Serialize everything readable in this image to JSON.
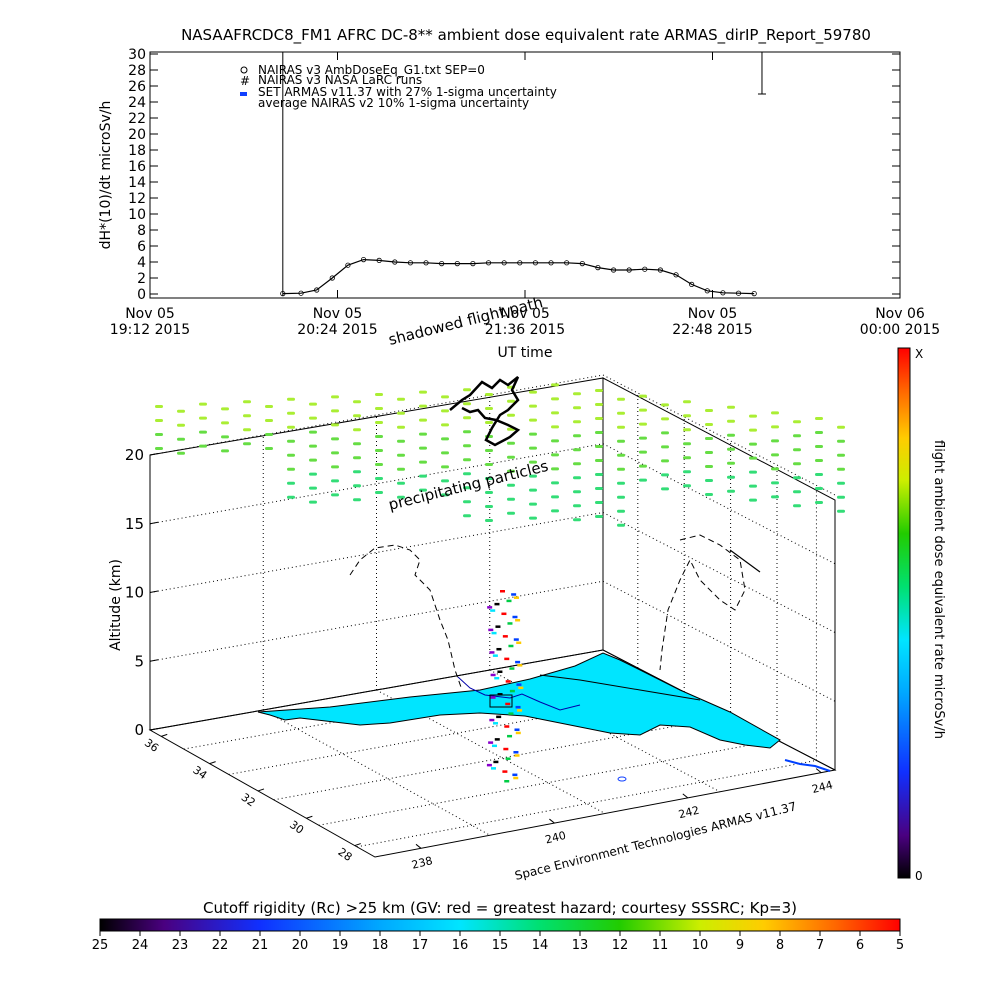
{
  "title": "NASAAFRCDC8_FM1 AFRC DC-8** ambient dose equivalent rate ARMAS_dirIP_Report_59780",
  "colors": {
    "cyan_surface": "#00e5ff",
    "precip_green": "#33dd77",
    "precip_yellow_green": "#aaee33",
    "flight_path": "#000000"
  },
  "chart_data": [
    {
      "type": "line",
      "ylabel": "dH*(10)/dt microSv/h",
      "xlabel": "UT time",
      "ylim": [
        0,
        30
      ],
      "yticks": [
        "0",
        "2",
        "4",
        "6",
        "8",
        "10",
        "12",
        "14",
        "16",
        "18",
        "20",
        "22",
        "24",
        "26",
        "28",
        "30"
      ],
      "xticks": [
        {
          "line1": "Nov 05",
          "line2": "19:12 2015"
        },
        {
          "line1": "Nov 05",
          "line2": "20:24 2015"
        },
        {
          "line1": "Nov 05",
          "line2": "21:36 2015"
        },
        {
          "line1": "Nov 05",
          "line2": "22:48 2015"
        },
        {
          "line1": "Nov 06",
          "line2": "00:00 2015"
        }
      ],
      "x_minutes_since_tick0": [
        51,
        58,
        64,
        70,
        76,
        82,
        88,
        94,
        100,
        106,
        112,
        118,
        124,
        130,
        136,
        142,
        148,
        154,
        160,
        166,
        172,
        178,
        184,
        190,
        196,
        202,
        208,
        214,
        220,
        226,
        232
      ],
      "legend": [
        "NAIRAS v3 AmbDoseEq_G1.txt SEP=0",
        "NAIRAS v3 NASA LaRC runs",
        "SET ARMAS v11.37 with 27% 1-sigma uncertainty",
        "average NAIRAS v2 10% 1-sigma uncertainty"
      ],
      "series": [
        {
          "name": "NAIRAS v3 AmbDoseEq_G1.txt SEP=0",
          "values": [
            0.05,
            0.1,
            0.5,
            2.0,
            3.6,
            4.3,
            4.2,
            4.0,
            3.9,
            3.9,
            3.8,
            3.8,
            3.8,
            3.9,
            3.9,
            3.9,
            3.9,
            3.9,
            3.9,
            3.8,
            3.3,
            3.0,
            3.0,
            3.1,
            3.0,
            2.4,
            1.2,
            0.4,
            0.15,
            0.1,
            0.05
          ]
        }
      ],
      "vertical_markers": [
        {
          "x_minutes": 51,
          "y_top": 31
        },
        {
          "x_minutes": 235,
          "y_top": 31,
          "y_bottom": 25
        }
      ]
    },
    {
      "type": "3d-scatter",
      "zlabel": "Altitude (km)",
      "zticks": [
        "0",
        "5",
        "10",
        "15",
        "20"
      ],
      "yticks": [
        "36",
        "34",
        "32",
        "30",
        "28"
      ],
      "xticks": [
        "238",
        "240",
        "242",
        "244"
      ],
      "annotations": [
        "shadowed flight path",
        "precipitating particles"
      ],
      "credit": "Space Environment Technologies ARMAS v11.37",
      "colorbar": {
        "label": "flight ambient dose equivalent rate microSv/h",
        "top": "X",
        "bottom": "0"
      }
    },
    {
      "type": "colorbar",
      "title": "Cutoff rigidity (Rc) >25 km (GV: red = greatest hazard; courtesy SSSRC; Kp=3)",
      "ticks": [
        "25",
        "24",
        "23",
        "22",
        "21",
        "20",
        "19",
        "18",
        "17",
        "16",
        "15",
        "14",
        "13",
        "12",
        "11",
        "10",
        "9",
        "8",
        "7",
        "6",
        "5"
      ]
    }
  ]
}
